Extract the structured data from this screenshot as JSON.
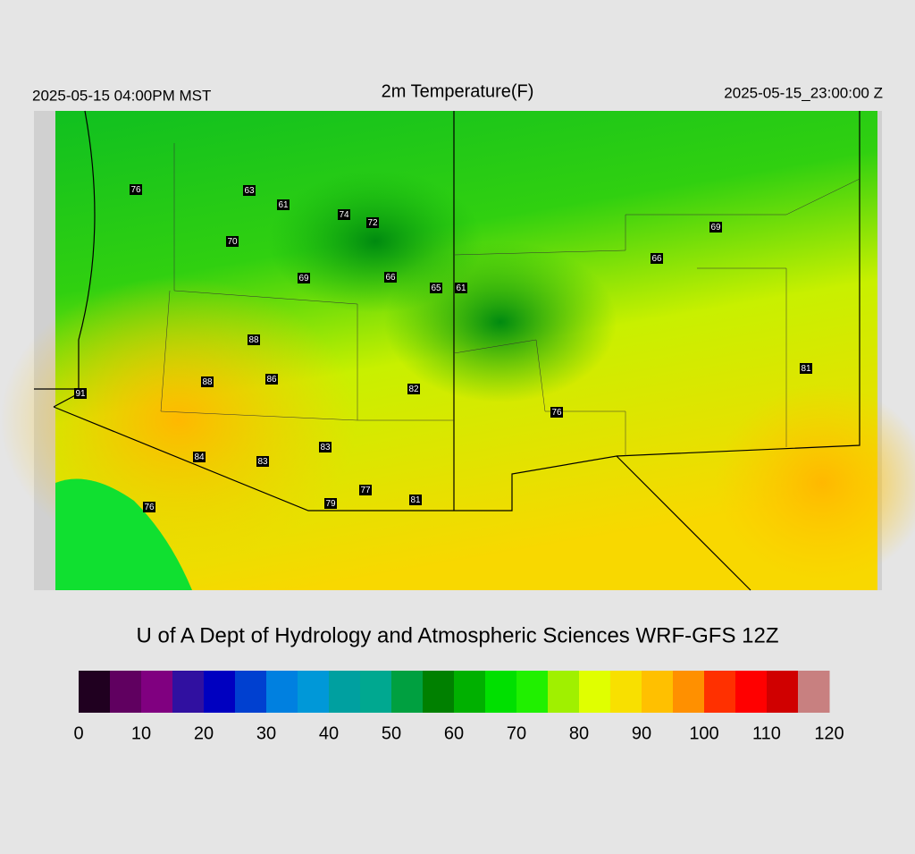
{
  "header": {
    "left": "2025-05-15 04:00PM MST",
    "title": "2m Temperature(F)",
    "right": "2025-05-15_23:00:00 Z"
  },
  "credit": "U of A Dept of Hydrology and Atmospheric Sciences WRF-GFS 12Z",
  "colorbar": {
    "range": [
      0,
      120
    ],
    "ticks": [
      0,
      10,
      20,
      30,
      40,
      50,
      60,
      70,
      80,
      90,
      100,
      110,
      120
    ],
    "colors": [
      "#200020",
      "#600060",
      "#800080",
      "#3010a0",
      "#0000c0",
      "#0040d0",
      "#0080e0",
      "#0098d8",
      "#00a0a0",
      "#00a890",
      "#00a040",
      "#008000",
      "#00b000",
      "#00e000",
      "#20f000",
      "#a0f000",
      "#e0ff00",
      "#f8e000",
      "#ffc000",
      "#ff9000",
      "#ff3000",
      "#ff0000",
      "#d00000",
      "#c88080"
    ]
  },
  "stations": [
    76,
    63,
    61,
    74,
    72,
    70,
    69,
    66,
    69,
    66,
    65,
    61,
    88,
    81,
    88,
    86,
    91,
    82,
    76,
    83,
    84,
    83,
    77,
    81,
    79,
    76
  ]
}
